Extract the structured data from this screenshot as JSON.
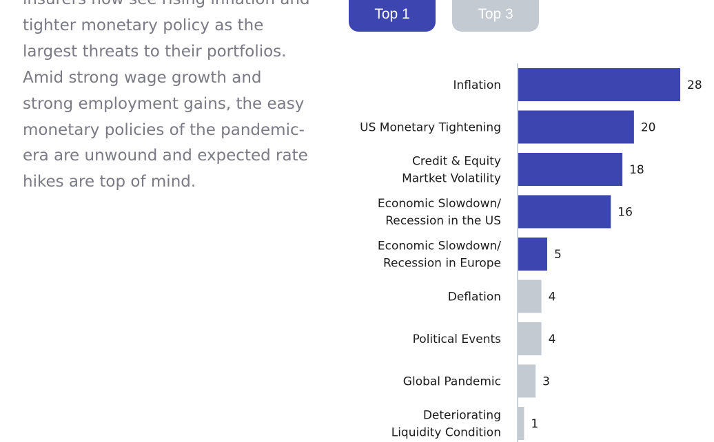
{
  "body_text": "insurers now see rising inflation and tighter monetary policy as the largest threats to their portfolios. Amid strong wage growth and strong employment gains, the easy monetary policies of the pandemic-era are unwound and expected rate hikes are top of mind.",
  "tabs": [
    {
      "label": "Top 1",
      "active": true
    },
    {
      "label": "Top 3",
      "active": false
    }
  ],
  "colors": {
    "highlight_bar": "#3c45b0",
    "muted_bar": "#c3cad2",
    "axis": "#c9d1dc",
    "tab_active": "#3c45b0",
    "tab_inactive": "#c3cad2"
  },
  "chart_data": {
    "type": "bar",
    "orientation": "horizontal",
    "categories": [
      [
        "Inflation"
      ],
      [
        "US Monetary Tightening"
      ],
      [
        "Credit & Equity",
        "Martket Volatility"
      ],
      [
        "Economic Slowdown/",
        "Recession in the US"
      ],
      [
        "Economic Slowdown/",
        "Recession in Europe"
      ],
      [
        "Deflation"
      ],
      [
        "Political Events"
      ],
      [
        "Global Pandemic"
      ],
      [
        "Deteriorating",
        "Liquidity Condition"
      ]
    ],
    "values": [
      28,
      20,
      18,
      16,
      5,
      4,
      4,
      3,
      1
    ],
    "highlighted": [
      true,
      true,
      true,
      true,
      true,
      false,
      false,
      false,
      false
    ],
    "xlim": [
      0,
      28
    ]
  }
}
